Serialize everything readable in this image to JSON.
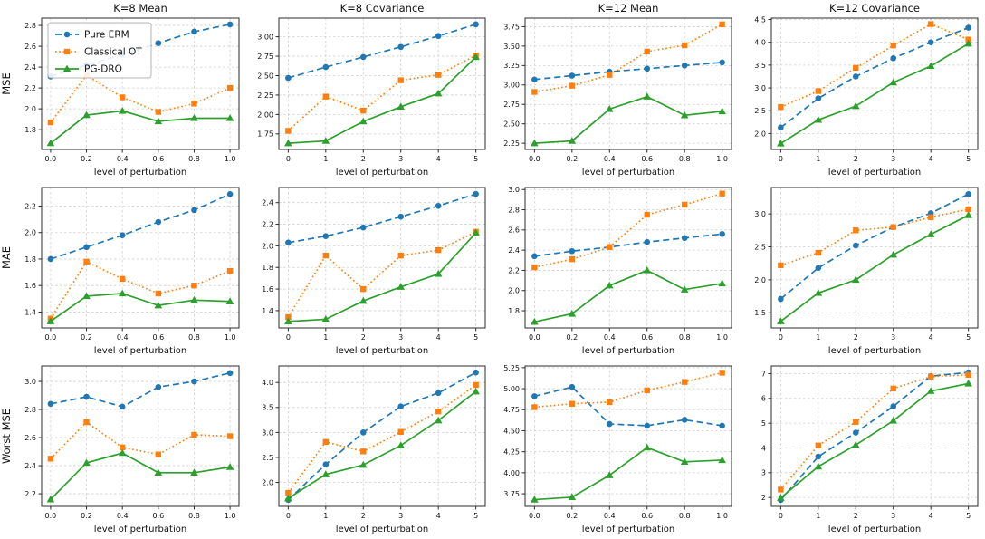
{
  "figure": {
    "background": "#ffffff",
    "xlabel": "level of perturbation",
    "col_titles": [
      "K=8 Mean",
      "K=8 Covariance",
      "K=12 Mean",
      "K=12 Covariance"
    ],
    "row_labels": [
      "MSE",
      "MAE",
      "Worst MSE"
    ],
    "series_styles": [
      {
        "name": "Pure ERM",
        "color": "#1f77b4",
        "line_style": "dashed",
        "marker": "circle"
      },
      {
        "name": "Classical OT",
        "color": "#ff7f0e",
        "line_style": "dotted",
        "marker": "square"
      },
      {
        "name": "PG-DRO",
        "color": "#2ca02c",
        "line_style": "solid",
        "marker": "triangle"
      }
    ],
    "grid_on": true,
    "legend_position": "upper-left-of-first-subplot"
  },
  "chart_data": [
    {
      "type": "line",
      "title": "K=8 Mean",
      "ylabel": "MSE",
      "legend": true,
      "x": [
        0.0,
        0.2,
        0.4,
        0.6,
        0.8,
        1.0
      ],
      "xtick_labels": [
        "0.0",
        "0.2",
        "0.4",
        "0.6",
        "0.8",
        "1.0"
      ],
      "ytick_labels": [
        "1.8",
        "2.0",
        "2.2",
        "2.4",
        "2.6",
        "2.8"
      ],
      "xlim": [
        -0.05,
        1.05
      ],
      "ylim": [
        1.61,
        2.87
      ],
      "series": [
        {
          "name": "Pure ERM",
          "values": [
            2.31,
            2.42,
            2.52,
            2.63,
            2.74,
            2.81
          ]
        },
        {
          "name": "Classical OT",
          "values": [
            1.87,
            2.32,
            2.11,
            1.97,
            2.05,
            2.2
          ]
        },
        {
          "name": "PG-DRO",
          "values": [
            1.67,
            1.94,
            1.98,
            1.88,
            1.91,
            1.91
          ]
        }
      ]
    },
    {
      "type": "line",
      "title": "K=8 Covariance",
      "ylabel": "",
      "legend": false,
      "x": [
        0,
        1,
        2,
        3,
        4,
        5
      ],
      "xtick_labels": [
        "0",
        "1",
        "2",
        "3",
        "4",
        "5"
      ],
      "ytick_labels": [
        "1.75",
        "2.00",
        "2.25",
        "2.50",
        "2.75",
        "3.00"
      ],
      "xlim": [
        -0.25,
        5.25
      ],
      "ylim": [
        1.55,
        3.24
      ],
      "series": [
        {
          "name": "Pure ERM",
          "values": [
            2.47,
            2.61,
            2.74,
            2.87,
            3.01,
            3.16
          ]
        },
        {
          "name": "Classical OT",
          "values": [
            1.79,
            2.23,
            2.05,
            2.44,
            2.51,
            2.76
          ]
        },
        {
          "name": "PG-DRO",
          "values": [
            1.63,
            1.66,
            1.91,
            2.1,
            2.27,
            2.74
          ]
        }
      ]
    },
    {
      "type": "line",
      "title": "K=12 Mean",
      "ylabel": "",
      "legend": false,
      "x": [
        0.0,
        0.2,
        0.4,
        0.6,
        0.8,
        1.0
      ],
      "xtick_labels": [
        "0.0",
        "0.2",
        "0.4",
        "0.6",
        "0.8",
        "1.0"
      ],
      "ytick_labels": [
        "2.25",
        "2.50",
        "2.75",
        "3.00",
        "3.25",
        "3.50",
        "3.75"
      ],
      "xlim": [
        -0.05,
        1.05
      ],
      "ylim": [
        2.17,
        3.86
      ],
      "series": [
        {
          "name": "Pure ERM",
          "values": [
            3.07,
            3.12,
            3.17,
            3.21,
            3.25,
            3.29
          ]
        },
        {
          "name": "Classical OT",
          "values": [
            2.91,
            2.99,
            3.13,
            3.43,
            3.51,
            3.78
          ]
        },
        {
          "name": "PG-DRO",
          "values": [
            2.25,
            2.28,
            2.69,
            2.85,
            2.61,
            2.66
          ]
        }
      ]
    },
    {
      "type": "line",
      "title": "K=12 Covariance",
      "ylabel": "",
      "legend": false,
      "x": [
        0,
        1,
        2,
        3,
        4,
        5
      ],
      "xtick_labels": [
        "0",
        "1",
        "2",
        "3",
        "4",
        "5"
      ],
      "ytick_labels": [
        "2.0",
        "2.5",
        "3.0",
        "3.5",
        "4.0",
        "4.5"
      ],
      "xlim": [
        -0.25,
        5.25
      ],
      "ylim": [
        1.65,
        4.53
      ],
      "series": [
        {
          "name": "Pure ERM",
          "values": [
            2.13,
            2.77,
            3.25,
            3.65,
            4.0,
            4.32
          ]
        },
        {
          "name": "Classical OT",
          "values": [
            2.58,
            2.93,
            3.44,
            3.93,
            4.4,
            4.06
          ]
        },
        {
          "name": "PG-DRO",
          "values": [
            1.78,
            2.3,
            2.6,
            3.12,
            3.48,
            3.97
          ]
        }
      ]
    },
    {
      "type": "line",
      "title": "",
      "ylabel": "MAE",
      "legend": false,
      "x": [
        0.0,
        0.2,
        0.4,
        0.6,
        0.8,
        1.0
      ],
      "xtick_labels": [
        "0.0",
        "0.2",
        "0.4",
        "0.6",
        "0.8",
        "1.0"
      ],
      "ytick_labels": [
        "1.4",
        "1.6",
        "1.8",
        "2.0",
        "2.2"
      ],
      "xlim": [
        -0.05,
        1.05
      ],
      "ylim": [
        1.28,
        2.34
      ],
      "series": [
        {
          "name": "Pure ERM",
          "values": [
            1.8,
            1.89,
            1.98,
            2.08,
            2.17,
            2.29
          ]
        },
        {
          "name": "Classical OT",
          "values": [
            1.35,
            1.78,
            1.65,
            1.54,
            1.6,
            1.71
          ]
        },
        {
          "name": "PG-DRO",
          "values": [
            1.33,
            1.52,
            1.54,
            1.45,
            1.49,
            1.48
          ]
        }
      ]
    },
    {
      "type": "line",
      "title": "",
      "ylabel": "",
      "legend": false,
      "x": [
        0,
        1,
        2,
        3,
        4,
        5
      ],
      "xtick_labels": [
        "0",
        "1",
        "2",
        "3",
        "4",
        "5"
      ],
      "ytick_labels": [
        "1.4",
        "1.6",
        "1.8",
        "2.0",
        "2.2",
        "2.4"
      ],
      "xlim": [
        -0.25,
        5.25
      ],
      "ylim": [
        1.24,
        2.54
      ],
      "series": [
        {
          "name": "Pure ERM",
          "values": [
            2.03,
            2.09,
            2.17,
            2.27,
            2.37,
            2.48
          ]
        },
        {
          "name": "Classical OT",
          "values": [
            1.34,
            1.91,
            1.6,
            1.91,
            1.96,
            2.13
          ]
        },
        {
          "name": "PG-DRO",
          "values": [
            1.3,
            1.32,
            1.49,
            1.62,
            1.74,
            2.12
          ]
        }
      ]
    },
    {
      "type": "line",
      "title": "",
      "ylabel": "",
      "legend": false,
      "x": [
        0.0,
        0.2,
        0.4,
        0.6,
        0.8,
        1.0
      ],
      "xtick_labels": [
        "0.0",
        "0.2",
        "0.4",
        "0.6",
        "0.8",
        "1.0"
      ],
      "ytick_labels": [
        "1.8",
        "2.0",
        "2.2",
        "2.4",
        "2.6",
        "2.8",
        "3.0"
      ],
      "xlim": [
        -0.05,
        1.05
      ],
      "ylim": [
        1.63,
        3.02
      ],
      "series": [
        {
          "name": "Pure ERM",
          "values": [
            2.34,
            2.39,
            2.43,
            2.48,
            2.52,
            2.56
          ]
        },
        {
          "name": "Classical OT",
          "values": [
            2.23,
            2.31,
            2.43,
            2.75,
            2.85,
            2.96
          ]
        },
        {
          "name": "PG-DRO",
          "values": [
            1.69,
            1.77,
            2.05,
            2.2,
            2.01,
            2.07
          ]
        }
      ]
    },
    {
      "type": "line",
      "title": "",
      "ylabel": "",
      "legend": false,
      "x": [
        0,
        1,
        2,
        3,
        4,
        5
      ],
      "xtick_labels": [
        "0",
        "1",
        "2",
        "3",
        "4",
        "5"
      ],
      "ytick_labels": [
        "1.5",
        "2.0",
        "2.5",
        "3.0"
      ],
      "xlim": [
        -0.25,
        5.25
      ],
      "ylim": [
        1.27,
        3.4
      ],
      "series": [
        {
          "name": "Pure ERM",
          "values": [
            1.71,
            2.18,
            2.52,
            2.8,
            3.01,
            3.3
          ]
        },
        {
          "name": "Classical OT",
          "values": [
            2.22,
            2.41,
            2.75,
            2.8,
            2.95,
            3.07
          ]
        },
        {
          "name": "PG-DRO",
          "values": [
            1.37,
            1.8,
            2.0,
            2.38,
            2.69,
            2.98
          ]
        }
      ]
    },
    {
      "type": "line",
      "title": "",
      "ylabel": "Worst MSE",
      "legend": false,
      "x": [
        0.0,
        0.2,
        0.4,
        0.6,
        0.8,
        1.0
      ],
      "xtick_labels": [
        "0.0",
        "0.2",
        "0.4",
        "0.6",
        "0.8",
        "1.0"
      ],
      "ytick_labels": [
        "2.2",
        "2.4",
        "2.6",
        "2.8",
        "3.0"
      ],
      "xlim": [
        -0.05,
        1.05
      ],
      "ylim": [
        2.11,
        3.11
      ],
      "series": [
        {
          "name": "Pure ERM",
          "values": [
            2.84,
            2.89,
            2.82,
            2.96,
            3.0,
            3.06
          ]
        },
        {
          "name": "Classical OT",
          "values": [
            2.45,
            2.71,
            2.53,
            2.48,
            2.62,
            2.61
          ]
        },
        {
          "name": "PG-DRO",
          "values": [
            2.16,
            2.42,
            2.49,
            2.35,
            2.35,
            2.39
          ]
        }
      ]
    },
    {
      "type": "line",
      "title": "",
      "ylabel": "",
      "legend": false,
      "x": [
        0,
        1,
        2,
        3,
        4,
        5
      ],
      "xtick_labels": [
        "0",
        "1",
        "2",
        "3",
        "4",
        "5"
      ],
      "ytick_labels": [
        "2.0",
        "2.5",
        "3.0",
        "3.5",
        "4.0"
      ],
      "xlim": [
        -0.25,
        5.25
      ],
      "ylim": [
        1.52,
        4.33
      ],
      "series": [
        {
          "name": "Pure ERM",
          "values": [
            1.65,
            2.36,
            3.0,
            3.52,
            3.79,
            4.2
          ]
        },
        {
          "name": "Classical OT",
          "values": [
            1.79,
            2.81,
            2.62,
            3.01,
            3.42,
            3.95
          ]
        },
        {
          "name": "PG-DRO",
          "values": [
            1.68,
            2.16,
            2.35,
            2.74,
            3.24,
            3.82
          ]
        }
      ]
    },
    {
      "type": "line",
      "title": "",
      "ylabel": "",
      "legend": false,
      "x": [
        0.0,
        0.2,
        0.4,
        0.6,
        0.8,
        1.0
      ],
      "xtick_labels": [
        "0.0",
        "0.2",
        "0.4",
        "0.6",
        "0.8",
        "1.0"
      ],
      "ytick_labels": [
        "3.75",
        "4.00",
        "4.25",
        "4.50",
        "4.75",
        "5.00",
        "5.25"
      ],
      "xlim": [
        -0.05,
        1.05
      ],
      "ylim": [
        3.6,
        5.27
      ],
      "series": [
        {
          "name": "Pure ERM",
          "values": [
            4.91,
            5.02,
            4.58,
            4.56,
            4.63,
            4.56
          ]
        },
        {
          "name": "Classical OT",
          "values": [
            4.78,
            4.82,
            4.84,
            4.98,
            5.08,
            5.19
          ]
        },
        {
          "name": "PG-DRO",
          "values": [
            3.68,
            3.71,
            3.97,
            4.3,
            4.13,
            4.15
          ]
        }
      ]
    },
    {
      "type": "line",
      "title": "",
      "ylabel": "",
      "legend": false,
      "x": [
        0,
        1,
        2,
        3,
        4,
        5
      ],
      "xtick_labels": [
        "0",
        "1",
        "2",
        "3",
        "4",
        "5"
      ],
      "ytick_labels": [
        "2",
        "3",
        "4",
        "5",
        "6",
        "7"
      ],
      "xlim": [
        -0.25,
        5.25
      ],
      "ylim": [
        1.64,
        7.31
      ],
      "series": [
        {
          "name": "Pure ERM",
          "values": [
            1.9,
            3.65,
            4.62,
            5.68,
            6.9,
            7.05
          ]
        },
        {
          "name": "Classical OT",
          "values": [
            2.32,
            4.1,
            5.05,
            6.4,
            6.88,
            6.95
          ]
        },
        {
          "name": "PG-DRO",
          "values": [
            1.98,
            3.25,
            4.12,
            5.1,
            6.3,
            6.6
          ]
        }
      ]
    }
  ]
}
